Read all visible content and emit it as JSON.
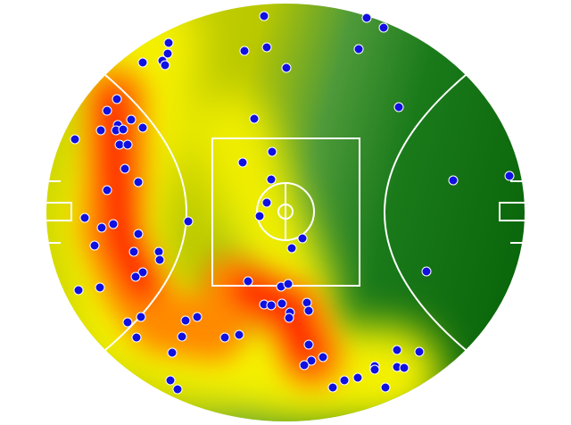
{
  "chart_data": {
    "type": "scatter",
    "color": "#1010e0",
    "xlim": [
      0,
      536
    ],
    "ylim": [
      0,
      468
    ],
    "x": [
      244,
      359,
      378,
      137,
      136,
      108,
      130,
      133,
      222,
      247,
      269,
      350,
      395,
      79,
      68,
      95,
      80,
      61,
      78,
      86,
      108,
      32,
      82,
      91,
      233,
      253,
      220,
      88,
      103,
      68,
      252,
      247,
      239,
      456,
      519,
      43,
      75,
      62,
      159,
      103,
      287,
      275,
      54,
      98,
      126,
      127,
      108,
      100,
      426,
      36,
      60,
      226,
      263,
      271,
      244,
      252,
      264,
      292,
      294,
      273,
      272,
      106,
      91,
      156,
      169,
      101,
      152,
      200,
      216,
      294,
      141,
      310,
      297,
      289,
      393,
      418,
      368,
      368,
      393,
      401,
      349,
      334,
      321,
      380,
      139,
      147
    ],
    "y": [
      454,
      452,
      441,
      424,
      412,
      402,
      404,
      399,
      415,
      419,
      396,
      417,
      352,
      361,
      348,
      338,
      332,
      326,
      326,
      327,
      329,
      316,
      310,
      310,
      339,
      302,
      290,
      283,
      268,
      259,
      271,
      245,
      230,
      270,
      275,
      228,
      221,
      217,
      224,
      210,
      205,
      194,
      197,
      190,
      190,
      181,
      167,
      162,
      168,
      147,
      150,
      157,
      151,
      154,
      131,
      130,
      132,
      133,
      124,
      122,
      116,
      117,
      111,
      113,
      117,
      94,
      95,
      94,
      97,
      86,
      77,
      72,
      68,
      63,
      80,
      78,
      62,
      58,
      61,
      60,
      49,
      46,
      38,
      38,
      46,
      36
    ]
  }
}
